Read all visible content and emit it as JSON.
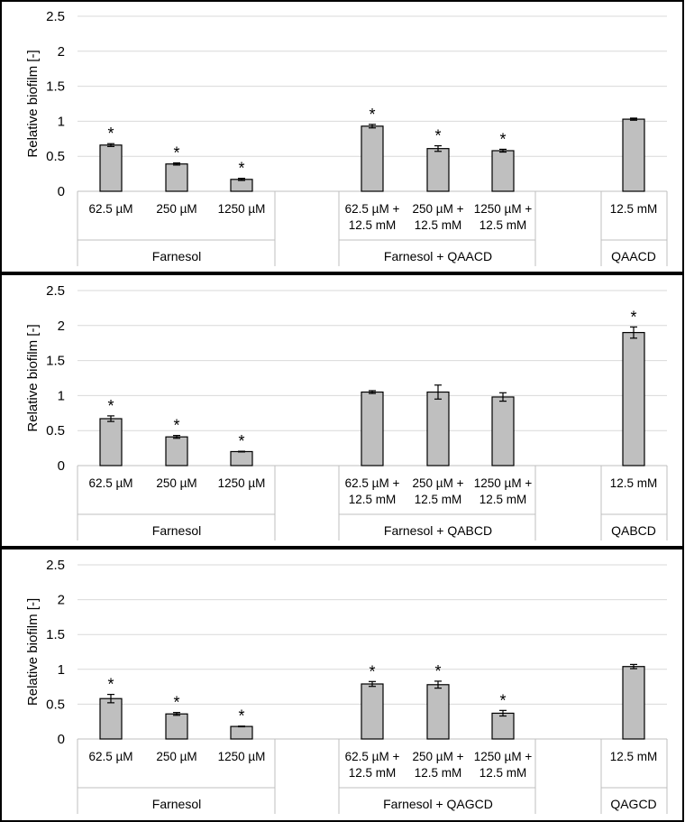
{
  "chart_data": [
    {
      "type": "bar",
      "ylabel": "Relative biofilm [-]",
      "ylim": [
        0,
        2.5
      ],
      "yticks": [
        "0",
        "0.5",
        "1",
        "1.5",
        "2",
        "2.5"
      ],
      "groups": [
        "Farnesol",
        "Farnesol + QAACD",
        "QAACD"
      ],
      "bars": [
        {
          "category": [
            "62.5 µM"
          ],
          "group": "Farnesol",
          "value": 0.66,
          "error": 0.02,
          "significant": true
        },
        {
          "category": [
            "250 µM"
          ],
          "group": "Farnesol",
          "value": 0.39,
          "error": 0.015,
          "significant": true
        },
        {
          "category": [
            "1250 µM"
          ],
          "group": "Farnesol",
          "value": 0.17,
          "error": 0.015,
          "significant": true
        },
        {
          "category": [
            "62.5 µM +",
            "12.5 mM"
          ],
          "group": "Farnesol + QAACD",
          "value": 0.93,
          "error": 0.025,
          "significant": true
        },
        {
          "category": [
            "250 µM +",
            "12.5 mM"
          ],
          "group": "Farnesol + QAACD",
          "value": 0.61,
          "error": 0.04,
          "significant": true
        },
        {
          "category": [
            "1250 µM +",
            "12.5 mM"
          ],
          "group": "Farnesol + QAACD",
          "value": 0.58,
          "error": 0.02,
          "significant": true
        },
        {
          "category": [
            "12.5 mM"
          ],
          "group": "QAACD",
          "value": 1.03,
          "error": 0.015,
          "significant": false
        }
      ]
    },
    {
      "type": "bar",
      "ylabel": "Relative biofilm [-]",
      "ylim": [
        0,
        2.5
      ],
      "yticks": [
        "0",
        "0.5",
        "1",
        "1.5",
        "2",
        "2.5"
      ],
      "groups": [
        "Farnesol",
        "Farnesol + QABCD",
        "QABCD"
      ],
      "bars": [
        {
          "category": [
            "62.5 µM"
          ],
          "group": "Farnesol",
          "value": 0.67,
          "error": 0.04,
          "significant": true
        },
        {
          "category": [
            "250 µM"
          ],
          "group": "Farnesol",
          "value": 0.41,
          "error": 0.02,
          "significant": true
        },
        {
          "category": [
            "1250 µM"
          ],
          "group": "Farnesol",
          "value": 0.2,
          "error": 0.005,
          "significant": true
        },
        {
          "category": [
            "62.5 µM +",
            "12.5 mM"
          ],
          "group": "Farnesol + QABCD",
          "value": 1.05,
          "error": 0.02,
          "significant": false
        },
        {
          "category": [
            "250 µM +",
            "12.5 mM"
          ],
          "group": "Farnesol + QABCD",
          "value": 1.05,
          "error": 0.1,
          "significant": false
        },
        {
          "category": [
            "1250 µM +",
            "12.5 mM"
          ],
          "group": "Farnesol + QABCD",
          "value": 0.98,
          "error": 0.06,
          "significant": false
        },
        {
          "category": [
            "12.5 mM"
          ],
          "group": "QABCD",
          "value": 1.9,
          "error": 0.08,
          "significant": true
        }
      ]
    },
    {
      "type": "bar",
      "ylabel": "Relative biofilm [-]",
      "ylim": [
        0,
        2.5
      ],
      "yticks": [
        "0",
        "0.5",
        "1",
        "1.5",
        "2",
        "2.5"
      ],
      "groups": [
        "Farnesol",
        "Farnesol + QAGCD",
        "QAGCD"
      ],
      "bars": [
        {
          "category": [
            "62.5 µM"
          ],
          "group": "Farnesol",
          "value": 0.58,
          "error": 0.06,
          "significant": true
        },
        {
          "category": [
            "250 µM"
          ],
          "group": "Farnesol",
          "value": 0.36,
          "error": 0.02,
          "significant": true
        },
        {
          "category": [
            "1250 µM"
          ],
          "group": "Farnesol",
          "value": 0.18,
          "error": 0.005,
          "significant": true
        },
        {
          "category": [
            "62.5 µM +",
            "12.5 mM"
          ],
          "group": "Farnesol + QAGCD",
          "value": 0.79,
          "error": 0.035,
          "significant": true
        },
        {
          "category": [
            "250 µM +",
            "12.5 mM"
          ],
          "group": "Farnesol + QAGCD",
          "value": 0.78,
          "error": 0.05,
          "significant": true
        },
        {
          "category": [
            "1250 µM +",
            "12.5 mM"
          ],
          "group": "Farnesol + QAGCD",
          "value": 0.37,
          "error": 0.04,
          "significant": true
        },
        {
          "category": [
            "12.5 mM"
          ],
          "group": "QAGCD",
          "value": 1.04,
          "error": 0.03,
          "significant": false
        }
      ]
    }
  ],
  "significance_marker": "*"
}
